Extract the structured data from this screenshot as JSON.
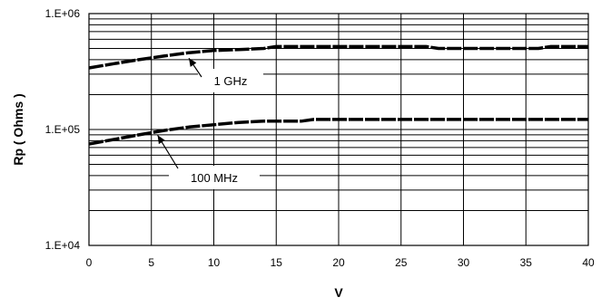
{
  "chart_data": {
    "type": "line",
    "title": "",
    "xlabel": "V",
    "ylabel": "Rp ( Ohms )",
    "xlim": [
      0,
      40
    ],
    "ylim": [
      10000,
      1000000
    ],
    "yscale": "log",
    "grid": true,
    "legend": "none",
    "x_ticks": [
      "0",
      "5",
      "10",
      "15",
      "20",
      "25",
      "30",
      "35",
      "40"
    ],
    "y_ticks": [
      "1.E+04",
      "1.E+05",
      "1.E+06"
    ],
    "series": [
      {
        "name": "1 GHz",
        "x": [
          0,
          2,
          4,
          6,
          8,
          10,
          12,
          14,
          15,
          20,
          25,
          27,
          28,
          30,
          35,
          36,
          37,
          40
        ],
        "y": [
          340000,
          370000,
          400000,
          430000,
          460000,
          480000,
          490000,
          500000,
          520000,
          520000,
          520000,
          520000,
          500000,
          500000,
          500000,
          500000,
          520000,
          520000
        ]
      },
      {
        "name": "100 MHz",
        "x": [
          0,
          2,
          4,
          6,
          8,
          10,
          12,
          14,
          17,
          18,
          20,
          25,
          30,
          35,
          40
        ],
        "y": [
          75000,
          82000,
          90000,
          98000,
          105000,
          110000,
          115000,
          118000,
          118000,
          122000,
          122000,
          122000,
          122000,
          122000,
          122000
        ]
      }
    ],
    "annotations": [
      {
        "text": "1 GHz",
        "series": 0
      },
      {
        "text": "100 MHz",
        "series": 1
      }
    ],
    "colors": {
      "line": "#000000",
      "grid": "#000000",
      "background": "#ffffff"
    }
  }
}
